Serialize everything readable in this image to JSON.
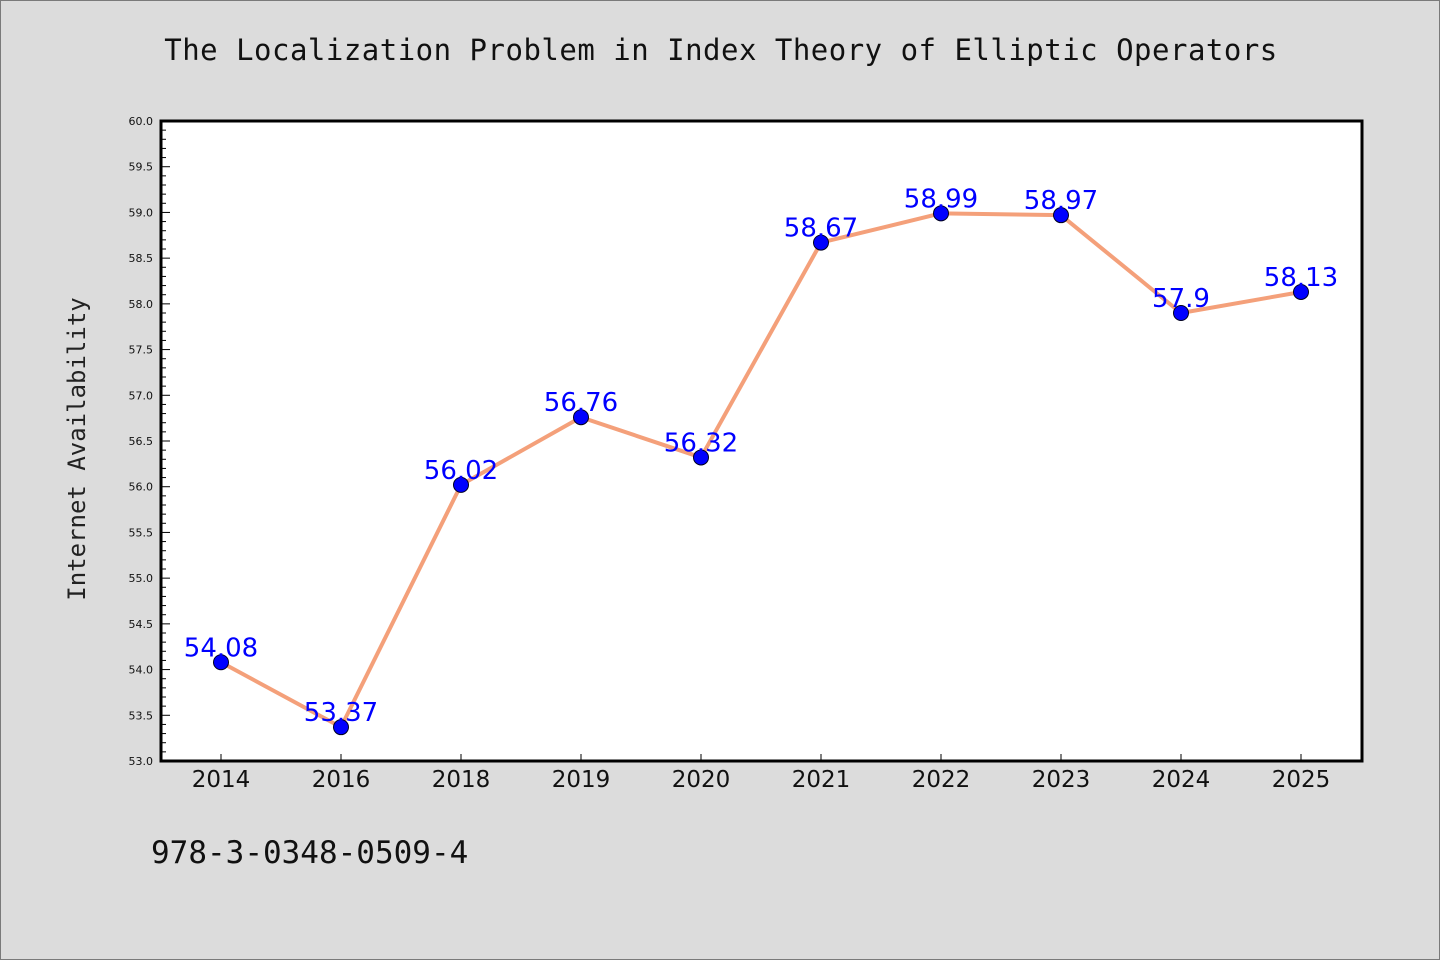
{
  "footer": {
    "identifier": "978-3-0348-0509-4"
  },
  "chart_data": {
    "type": "line",
    "title": "The Localization Problem in Index Theory of Elliptic Operators",
    "xlabel": "",
    "ylabel": "Internet Availability",
    "categories": [
      "2014",
      "2016",
      "2018",
      "2019",
      "2020",
      "2021",
      "2022",
      "2023",
      "2024",
      "2025"
    ],
    "series": [
      {
        "values": [
          54.08,
          53.37,
          56.02,
          56.76,
          56.32,
          58.67,
          58.99,
          58.97,
          57.9,
          58.13
        ],
        "labels": [
          "54.08",
          "53.37",
          "56.02",
          "56.76",
          "56.32",
          "58.67",
          "58.99",
          "58.97",
          "57.9",
          "58.13"
        ],
        "line_color": "#f4a07a",
        "marker_color": "#0000ff"
      }
    ],
    "ylim": [
      53.0,
      60.0
    ],
    "yticks": [
      "53.0",
      "53.5",
      "54.0",
      "54.5",
      "55.0",
      "55.5",
      "56.0",
      "56.5",
      "57.0",
      "57.5",
      "58.0",
      "58.5",
      "59.0",
      "59.5",
      "60.0"
    ],
    "grid": false,
    "legend": "none",
    "label_color": "#0000ff"
  }
}
